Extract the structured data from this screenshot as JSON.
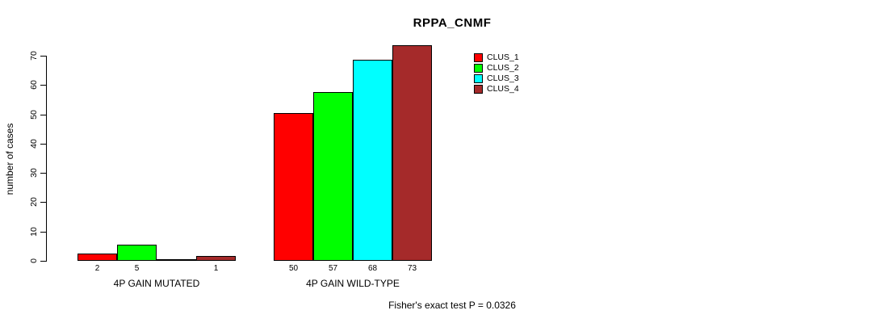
{
  "chart_data": {
    "type": "bar",
    "title": "RPPA_CNMF",
    "ylabel": "number of cases",
    "xlabel": "",
    "ylim": [
      0,
      70
    ],
    "yticks": [
      0,
      10,
      20,
      30,
      40,
      50,
      60,
      70
    ],
    "grid": false,
    "legend_position": "top-right",
    "bar_border_color": "#000000",
    "show_zero_value_labels": false,
    "categories": [
      "4P GAIN MUTATED",
      "4P GAIN WILD-TYPE"
    ],
    "series": [
      {
        "name": "CLUS_1",
        "color": "#FF0000",
        "values": [
          2,
          50
        ]
      },
      {
        "name": "CLUS_2",
        "color": "#00FF00",
        "values": [
          5,
          57
        ]
      },
      {
        "name": "CLUS_3",
        "color": "#00FFFF",
        "values": [
          0,
          68
        ]
      },
      {
        "name": "CLUS_4",
        "color": "#A52A2A",
        "values": [
          1,
          73
        ]
      }
    ],
    "annotation": "Fisher's exact test P = 0.0326"
  }
}
